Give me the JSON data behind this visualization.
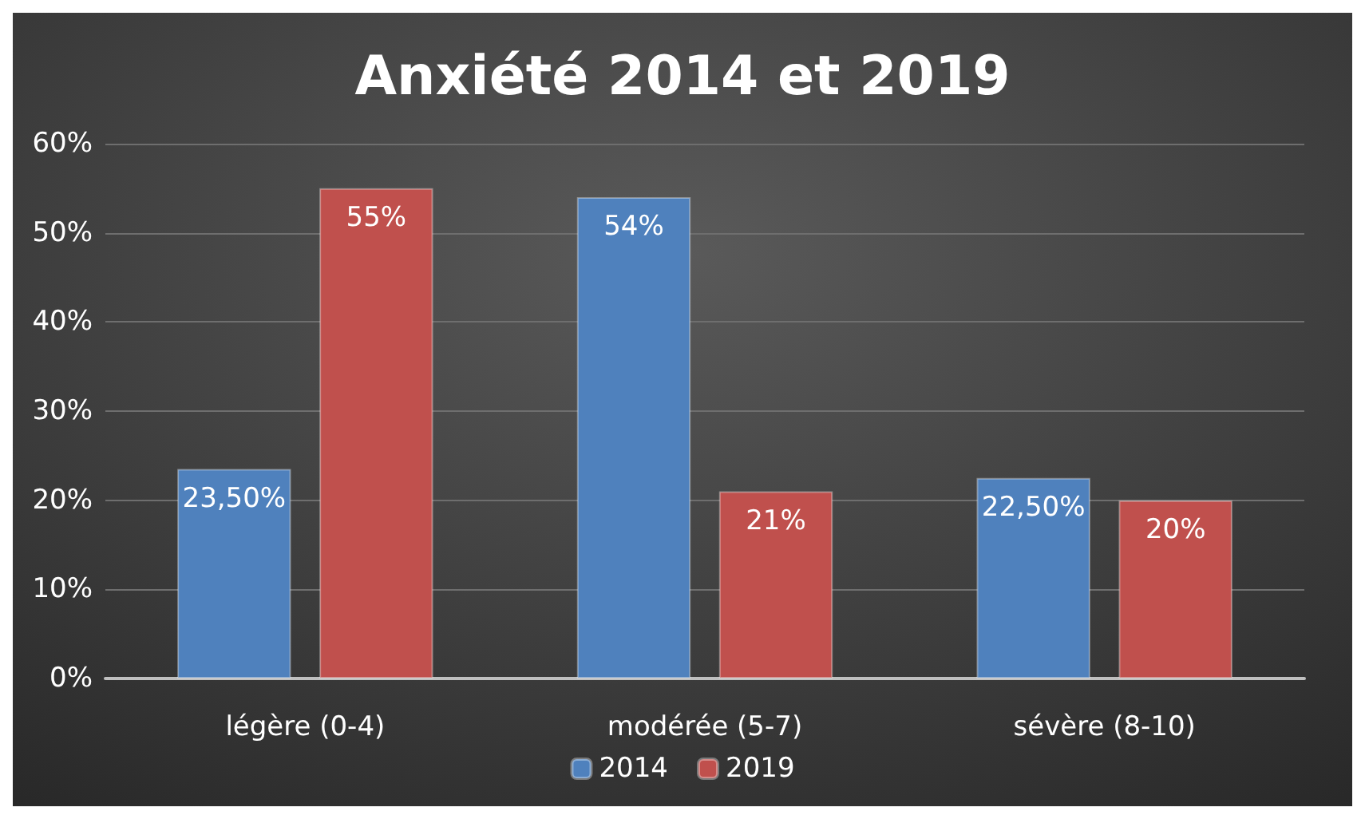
{
  "chart_data": {
    "type": "bar",
    "title": "Anxiété 2014 et 2019",
    "categories": [
      "légère (0-4)",
      "modérée (5-7)",
      "sévère (8-10)"
    ],
    "series": [
      {
        "name": "2014",
        "color": "#4f81bd",
        "values": [
          23.5,
          54,
          22.5
        ],
        "value_labels": [
          "23,50%",
          "54%",
          "22,50%"
        ]
      },
      {
        "name": "2019",
        "color": "#c0504d",
        "values": [
          55,
          21,
          20
        ],
        "value_labels": [
          "55%",
          "21%",
          "20%"
        ]
      }
    ],
    "ylim": [
      0,
      60
    ],
    "yticks": [
      {
        "value": 0,
        "label": "0%"
      },
      {
        "value": 10,
        "label": "10%"
      },
      {
        "value": 20,
        "label": "20%"
      },
      {
        "value": 30,
        "label": "30%"
      },
      {
        "value": 40,
        "label": "40%"
      },
      {
        "value": 50,
        "label": "50%"
      },
      {
        "value": 60,
        "label": "60%"
      }
    ],
    "grid": "y",
    "legend": "bottom"
  }
}
